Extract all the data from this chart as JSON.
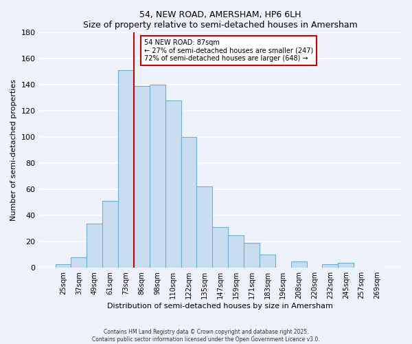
{
  "title": "54, NEW ROAD, AMERSHAM, HP6 6LH",
  "subtitle": "Size of property relative to semi-detached houses in Amersham",
  "xlabel": "Distribution of semi-detached houses by size in Amersham",
  "ylabel": "Number of semi-detached properties",
  "bar_labels": [
    "25sqm",
    "37sqm",
    "49sqm",
    "61sqm",
    "73sqm",
    "86sqm",
    "98sqm",
    "110sqm",
    "122sqm",
    "135sqm",
    "147sqm",
    "159sqm",
    "171sqm",
    "183sqm",
    "196sqm",
    "208sqm",
    "220sqm",
    "232sqm",
    "245sqm",
    "257sqm",
    "269sqm"
  ],
  "bar_values": [
    3,
    8,
    34,
    51,
    151,
    139,
    140,
    128,
    100,
    62,
    31,
    25,
    19,
    10,
    0,
    5,
    0,
    3,
    4,
    0,
    0
  ],
  "bar_color": "#c9ddf0",
  "bar_edge_color": "#6baed6",
  "ylim": [
    0,
    180
  ],
  "yticks": [
    0,
    20,
    40,
    60,
    80,
    100,
    120,
    140,
    160,
    180
  ],
  "property_label": "54 NEW ROAD: 87sqm",
  "annotation_line1": "← 27% of semi-detached houses are smaller (247)",
  "annotation_line2": "72% of semi-detached houses are larger (648) →",
  "vline_index": 5,
  "vline_color": "#cc0000",
  "background_color": "#eef2fa",
  "grid_color": "#ffffff",
  "footer1": "Contains HM Land Registry data © Crown copyright and database right 2025.",
  "footer2": "Contains public sector information licensed under the Open Government Licence v3.0."
}
